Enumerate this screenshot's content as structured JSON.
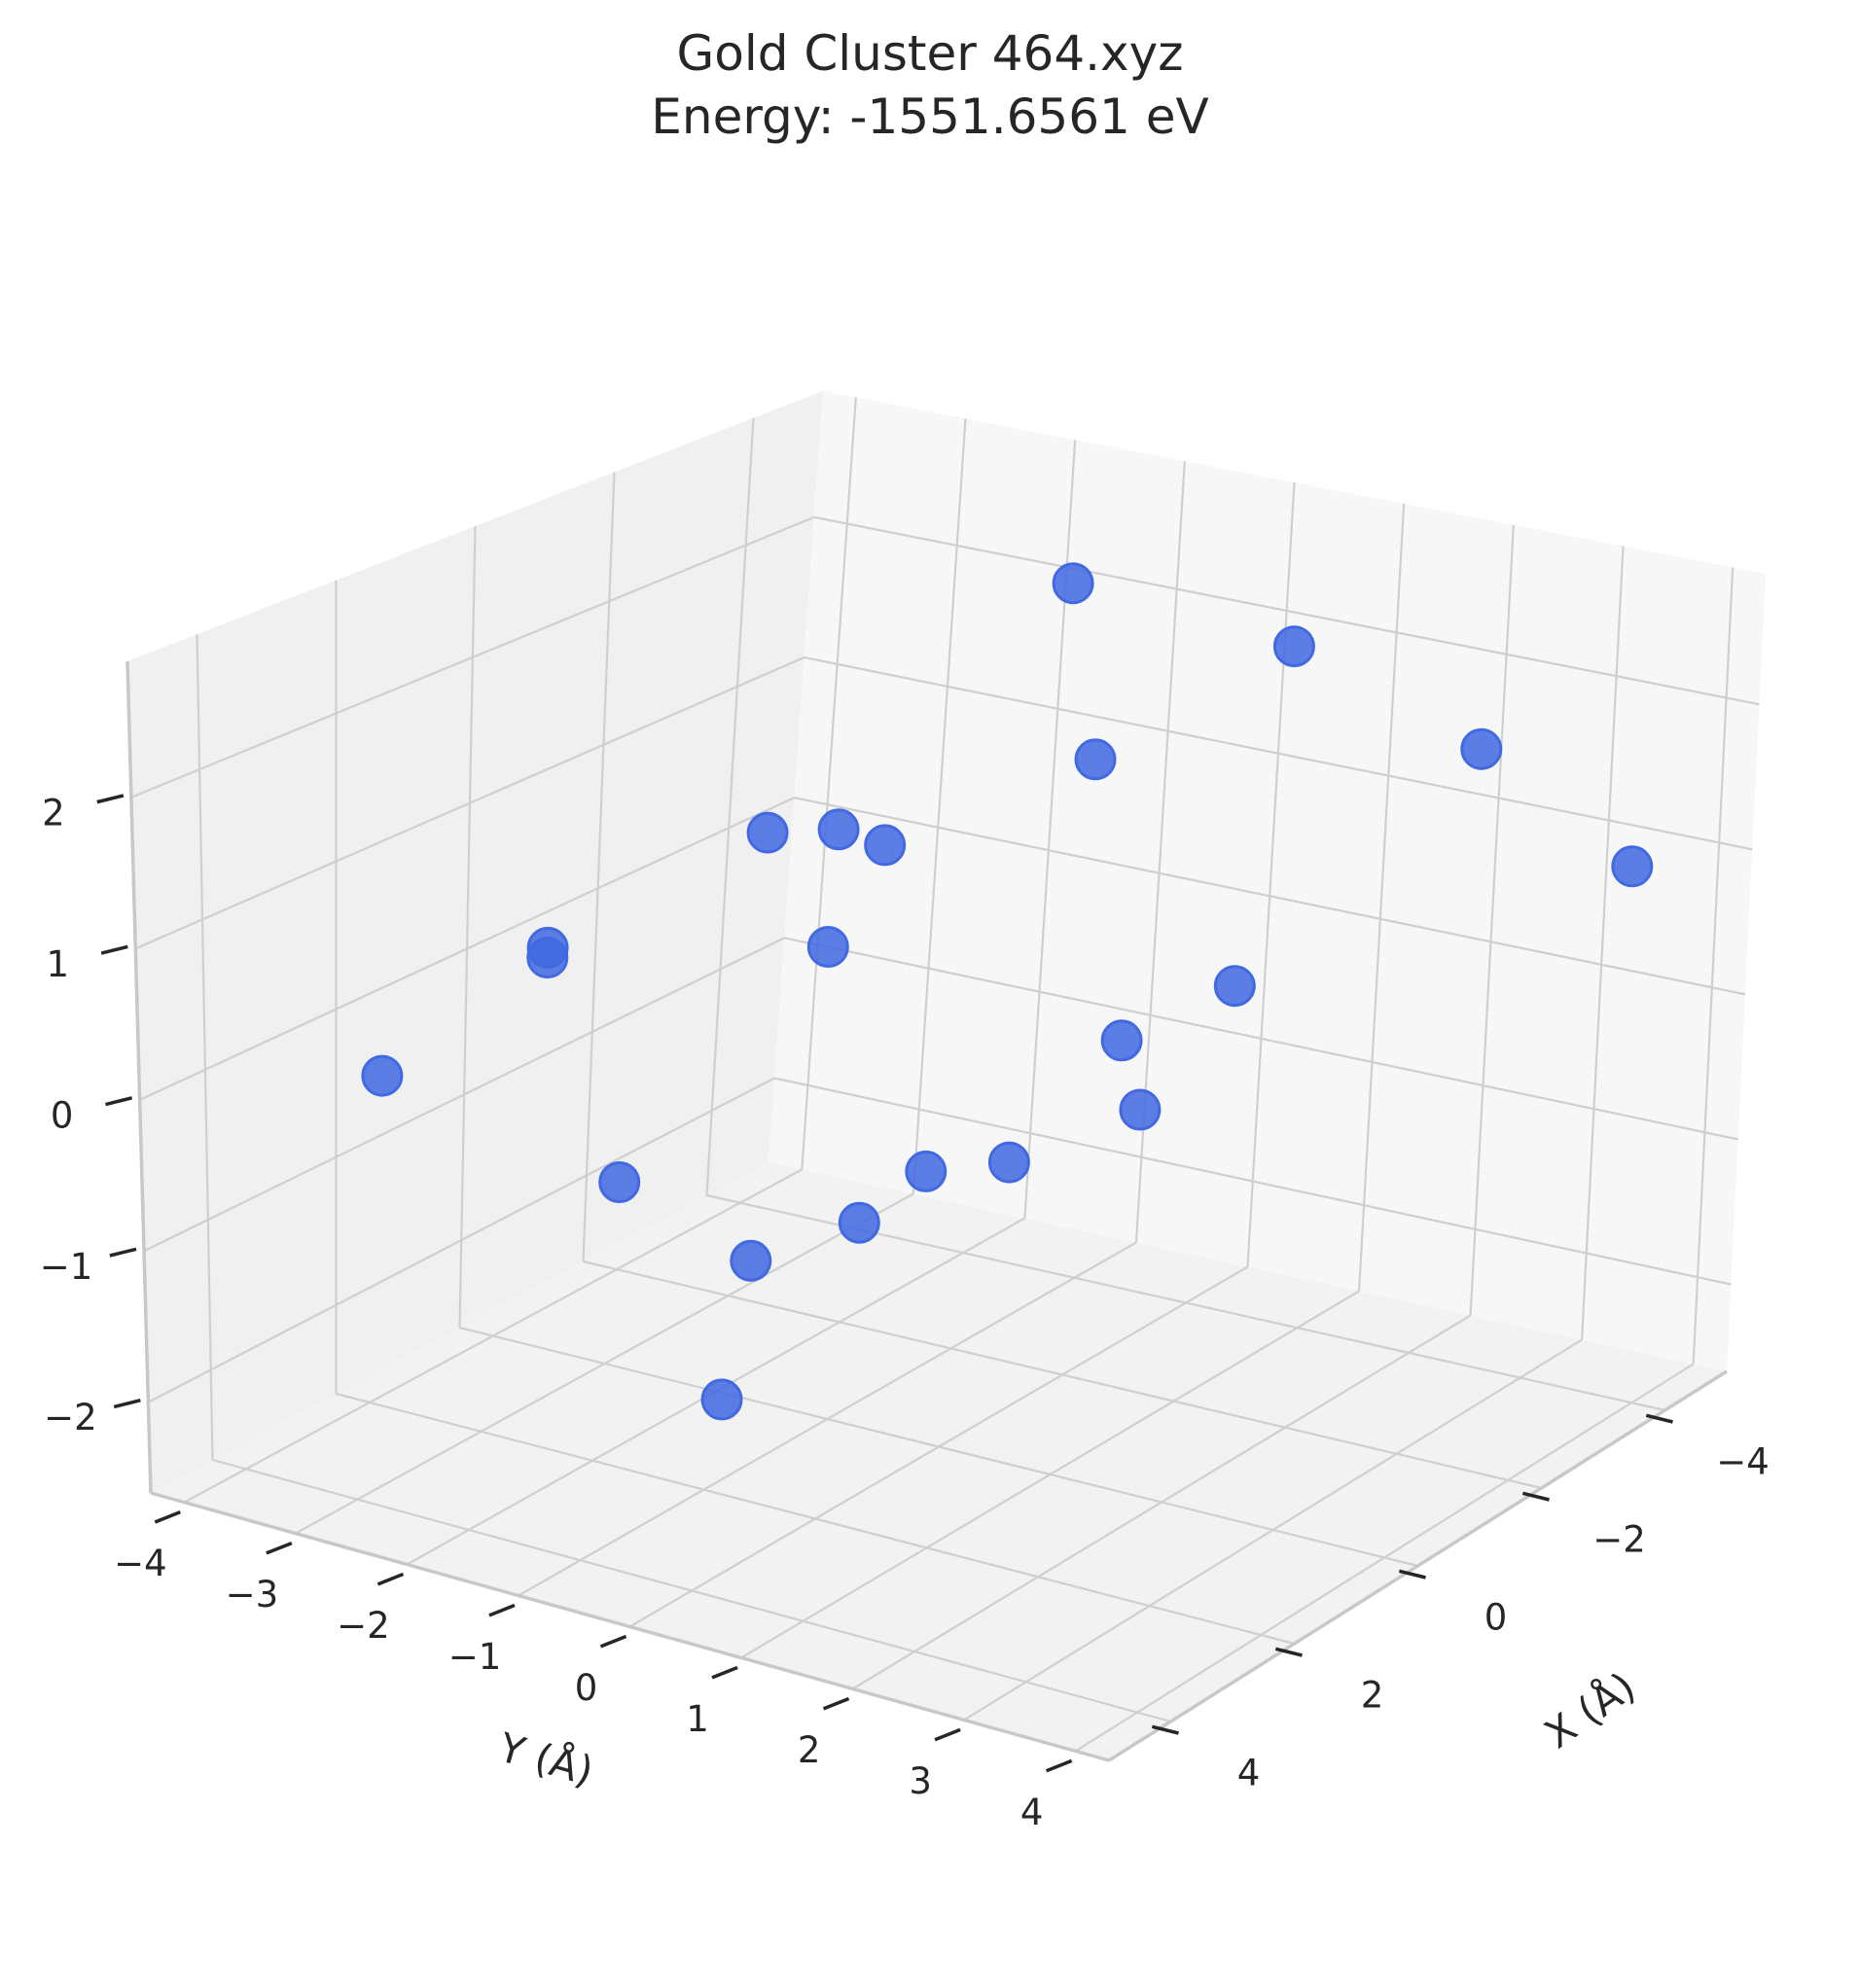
{
  "chart_data": {
    "type": "scatter",
    "title_lines": [
      "Gold Cluster 464.xyz",
      "Energy: -1551.6561 eV"
    ],
    "xlabel": "X (Å)",
    "ylabel": "Y (Å)",
    "zlabel": "",
    "xlim": [
      -5,
      5
    ],
    "ylim": [
      -4.3,
      4.3
    ],
    "zlim": [
      -2.6,
      2.9
    ],
    "x_ticks": [
      -4,
      -2,
      0,
      2,
      4
    ],
    "x_tick_labels": [
      "−4",
      "−2",
      "0",
      "2",
      "4"
    ],
    "y_ticks": [
      -4,
      -3,
      -2,
      -1,
      0,
      1,
      2,
      3,
      4
    ],
    "y_tick_labels": [
      "−4",
      "−3",
      "−2",
      "−1",
      "0",
      "1",
      "2",
      "3",
      "4"
    ],
    "z_ticks": [
      -2,
      -1,
      0,
      1,
      2
    ],
    "z_tick_labels": [
      "−2",
      "−1",
      "0",
      "1",
      "2"
    ],
    "grid": true,
    "point_color": "#4169e1",
    "points": [
      {
        "x": -1.3,
        "y": 0.3,
        "z": 2.8
      },
      {
        "x": -2.8,
        "y": 1.4,
        "z": 2.3
      },
      {
        "x": -1.2,
        "y": 0.6,
        "z": 1.7
      },
      {
        "x": -3.0,
        "y": 3.0,
        "z": 1.8
      },
      {
        "x": -3.5,
        "y": 4.1,
        "z": 1.1
      },
      {
        "x": 0.2,
        "y": -1.5,
        "z": 1.2
      },
      {
        "x": -0.4,
        "y": -0.8,
        "z": 1.1
      },
      {
        "x": -0.2,
        "y": -1.1,
        "z": 1.2
      },
      {
        "x": 0.1,
        "y": -1.0,
        "z": 0.5
      },
      {
        "x": 0.0,
        "y": 2.6,
        "z": 0.7
      },
      {
        "x": -0.5,
        "y": 1.3,
        "z": 0.1
      },
      {
        "x": 1.1,
        "y": 2.4,
        "z": 0.1
      },
      {
        "x": 2.0,
        "y": -2.4,
        "z": 0.6
      },
      {
        "x": 0.3,
        "y": -3.4,
        "z": 0.2
      },
      {
        "x": 3.0,
        "y": -3.3,
        "z": -0.1
      },
      {
        "x": 1.4,
        "y": 1.4,
        "z": -0.3
      },
      {
        "x": 2.0,
        "y": 1.0,
        "z": -0.3
      },
      {
        "x": 3.3,
        "y": -1.0,
        "z": -0.4
      },
      {
        "x": 2.0,
        "y": 0.4,
        "z": -0.7
      },
      {
        "x": 3.0,
        "y": 0.0,
        "z": -0.8
      },
      {
        "x": 4.0,
        "y": 0.3,
        "z": -1.4
      }
    ]
  }
}
